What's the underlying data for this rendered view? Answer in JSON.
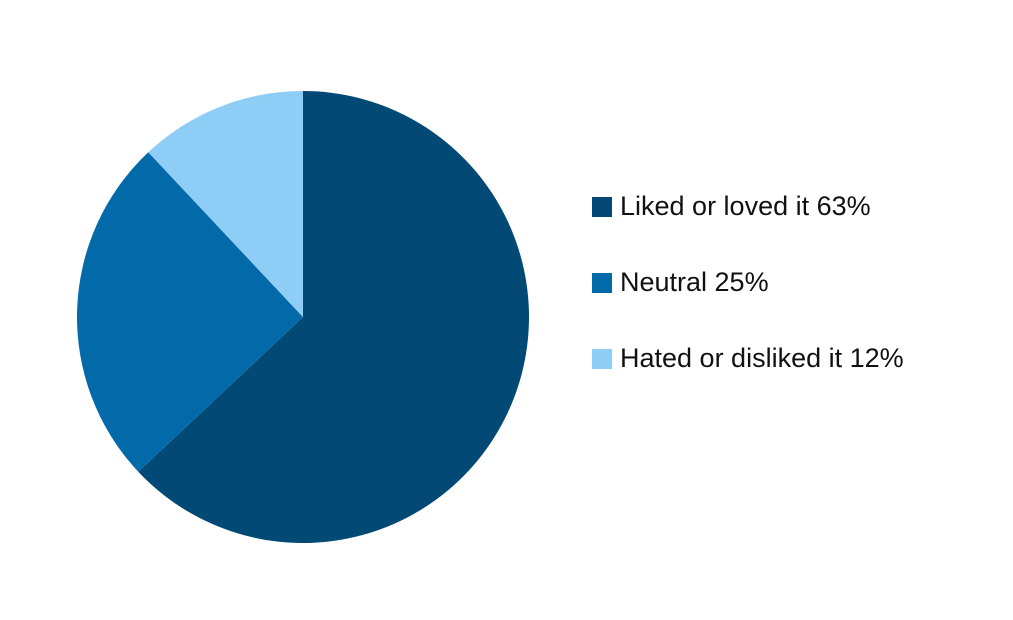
{
  "chart_data": {
    "type": "pie",
    "slices": [
      {
        "label": "Liked or loved it 63%",
        "value": 63,
        "color": "#024a75"
      },
      {
        "label": "Neutral 25%",
        "value": 25,
        "color": "#036aaa"
      },
      {
        "label": "Hated or disliked it 12%",
        "value": 12,
        "color": "#8ecdf5"
      }
    ],
    "legend_position": "right"
  }
}
